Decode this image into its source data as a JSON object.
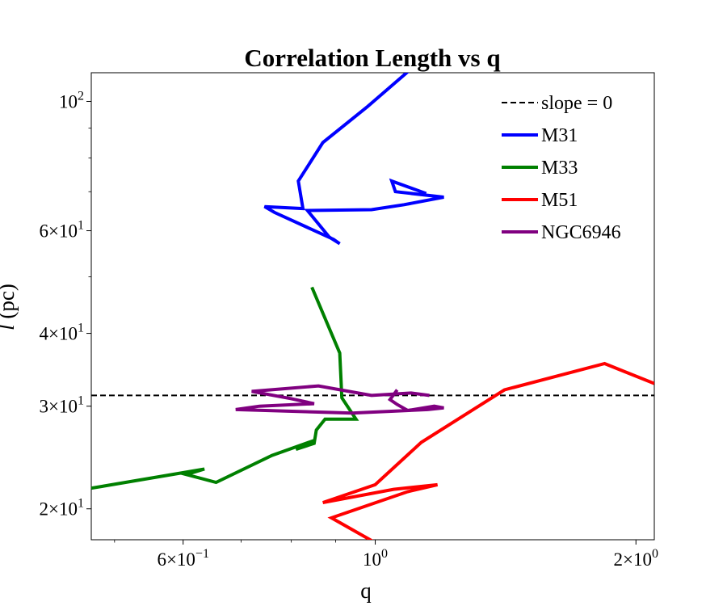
{
  "chart_data": {
    "type": "line",
    "title": "Correlation Length vs q",
    "xlabel": "q",
    "ylabel": "l (pc)",
    "ylabel_parts": {
      "symbol": "l",
      "unit": "(pc)"
    },
    "xscale": "log",
    "yscale": "log",
    "xlim": [
      0.47,
      2.1
    ],
    "ylim": [
      17.7,
      112
    ],
    "x_ticks": [
      {
        "value": 0.6,
        "mantissa": "6",
        "exp": "−1"
      },
      {
        "value": 1.0,
        "mantissa": "10",
        "exp": "0"
      },
      {
        "value": 2.0,
        "mantissa": "2",
        "exp": "0"
      }
    ],
    "y_ticks": [
      {
        "value": 20,
        "mantissa": "2",
        "exp": "1"
      },
      {
        "value": 30,
        "mantissa": "3",
        "exp": "1"
      },
      {
        "value": 40,
        "mantissa": "4",
        "exp": "1"
      },
      {
        "value": 60,
        "mantissa": "6",
        "exp": "1"
      },
      {
        "value": 100,
        "mantissa": "10",
        "exp": "2"
      }
    ],
    "reference_line": {
      "label": "slope = 0",
      "y": 31.3,
      "color": "#000000",
      "style": "dashed"
    },
    "legend_placement": "upper-right",
    "grid": false,
    "series": [
      {
        "name": "M31",
        "color": "#0000ff",
        "points": [
          [
            1.11,
            115
          ],
          [
            0.98,
            98
          ],
          [
            0.87,
            85
          ],
          [
            0.815,
            73
          ],
          [
            0.825,
            65.5
          ],
          [
            0.745,
            66
          ],
          [
            0.765,
            64.5
          ],
          [
            0.895,
            58
          ],
          [
            0.91,
            57
          ],
          [
            0.885,
            58.5
          ],
          [
            0.835,
            65
          ],
          [
            0.99,
            65.2
          ],
          [
            1.08,
            66.5
          ],
          [
            1.2,
            68.5
          ],
          [
            1.055,
            70
          ],
          [
            1.045,
            73
          ],
          [
            1.145,
            69.5
          ]
        ]
      },
      {
        "name": "M33",
        "color": "#008000",
        "points": [
          [
            0.845,
            48
          ],
          [
            0.91,
            37
          ],
          [
            0.915,
            31
          ],
          [
            0.95,
            28.5
          ],
          [
            0.875,
            28.5
          ],
          [
            0.855,
            27.3
          ],
          [
            0.85,
            25.9
          ],
          [
            0.81,
            25.3
          ],
          [
            0.825,
            25.7
          ],
          [
            0.85,
            26.2
          ],
          [
            0.76,
            24.7
          ],
          [
            0.655,
            22.2
          ],
          [
            0.605,
            22.9
          ],
          [
            0.635,
            23.4
          ],
          [
            0.47,
            21.7
          ]
        ]
      },
      {
        "name": "M51",
        "color": "#ff0000",
        "points": [
          [
            1.0,
            17.5
          ],
          [
            0.89,
            19.3
          ],
          [
            1.09,
            21.4
          ],
          [
            1.18,
            22.0
          ],
          [
            1.05,
            21.6
          ],
          [
            0.87,
            20.5
          ],
          [
            1.0,
            22.0
          ],
          [
            1.13,
            26.0
          ],
          [
            1.41,
            32.0
          ],
          [
            1.84,
            35.5
          ],
          [
            2.1,
            32.8
          ]
        ]
      },
      {
        "name": "NGC6946",
        "color": "#800080",
        "points": [
          [
            1.06,
            32.0
          ],
          [
            1.04,
            30.8
          ],
          [
            1.06,
            30.2
          ],
          [
            1.09,
            29.5
          ],
          [
            1.17,
            30.0
          ],
          [
            1.2,
            29.8
          ],
          [
            1.15,
            29.6
          ],
          [
            0.94,
            29.2
          ],
          [
            0.69,
            29.6
          ],
          [
            0.735,
            30.0
          ],
          [
            0.85,
            30.3
          ],
          [
            0.8,
            30.9
          ],
          [
            0.72,
            31.8
          ],
          [
            0.86,
            32.5
          ],
          [
            0.99,
            31.3
          ],
          [
            1.1,
            31.6
          ],
          [
            1.155,
            31.3
          ]
        ]
      }
    ]
  }
}
